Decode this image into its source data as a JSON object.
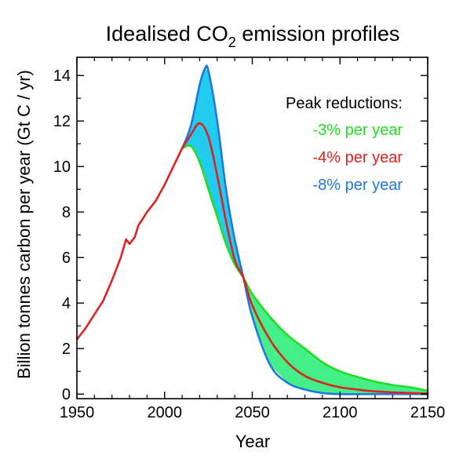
{
  "chart_data": {
    "type": "line",
    "title": "Idealised CO",
    "title_subscript": "2",
    "title_suffix": " emission profiles",
    "xlabel": "Year",
    "ylabel": "Billion tonnes carbon per year (Gt C / yr)",
    "xlim": [
      1950,
      2150
    ],
    "ylim": [
      -0.2,
      14.8
    ],
    "xticks": [
      1950,
      2000,
      2050,
      2100,
      2150
    ],
    "yticks": [
      0,
      2,
      4,
      6,
      8,
      10,
      12,
      14
    ],
    "grid": false,
    "legend_placement": "top-right",
    "legend_title": "Peak reductions:",
    "historical": {
      "x": [
        1950,
        1955,
        1960,
        1965,
        1970,
        1973,
        1975,
        1978,
        1980,
        1983,
        1985,
        1990,
        1995,
        2000,
        2005,
        2010
      ],
      "y": [
        2.4,
        2.9,
        3.5,
        4.1,
        5.0,
        5.6,
        6.0,
        6.8,
        6.6,
        6.9,
        7.4,
        8.0,
        8.5,
        9.2,
        10.0,
        10.8
      ]
    },
    "series": [
      {
        "name": "-3% per year",
        "color": "#22dd22",
        "x": [
          2010,
          2015,
          2020,
          2025,
          2030,
          2035,
          2040,
          2045,
          2050,
          2060,
          2070,
          2080,
          2090,
          2100,
          2110,
          2120,
          2130,
          2140,
          2150
        ],
        "y": [
          10.8,
          10.9,
          10.2,
          9.0,
          7.8,
          6.6,
          5.7,
          5.1,
          4.4,
          3.4,
          2.6,
          2.0,
          1.4,
          1.0,
          0.75,
          0.55,
          0.4,
          0.3,
          0.15
        ]
      },
      {
        "name": "-4% per year",
        "color": "#dd2222",
        "x": [
          2010,
          2015,
          2020,
          2025,
          2030,
          2035,
          2040,
          2045,
          2050,
          2060,
          2070,
          2080,
          2090,
          2100,
          2110,
          2120,
          2130,
          2140,
          2150
        ],
        "y": [
          10.8,
          11.4,
          11.9,
          11.3,
          9.6,
          7.6,
          5.9,
          5.1,
          3.9,
          2.4,
          1.4,
          0.8,
          0.5,
          0.3,
          0.2,
          0.12,
          0.08,
          0.05,
          0.03
        ]
      },
      {
        "name": "-8% per year",
        "color": "#2277dd",
        "x": [
          2010,
          2015,
          2020,
          2023,
          2025,
          2030,
          2035,
          2040,
          2045,
          2050,
          2060,
          2070,
          2080,
          2090,
          2100,
          2120,
          2150
        ],
        "y": [
          10.8,
          11.8,
          13.6,
          14.3,
          14.2,
          12.0,
          9.0,
          6.8,
          5.1,
          3.4,
          1.3,
          0.5,
          0.2,
          0.05,
          0.0,
          0.0,
          0.0
        ]
      }
    ],
    "fill_between": [
      {
        "between": [
          "-8% per year",
          "-3% per year"
        ],
        "color": "#22ccee"
      },
      {
        "between": [
          "-3% per year",
          "-8% per year"
        ],
        "color": "#44ee88"
      }
    ],
    "historical_color": "#dd2222"
  }
}
